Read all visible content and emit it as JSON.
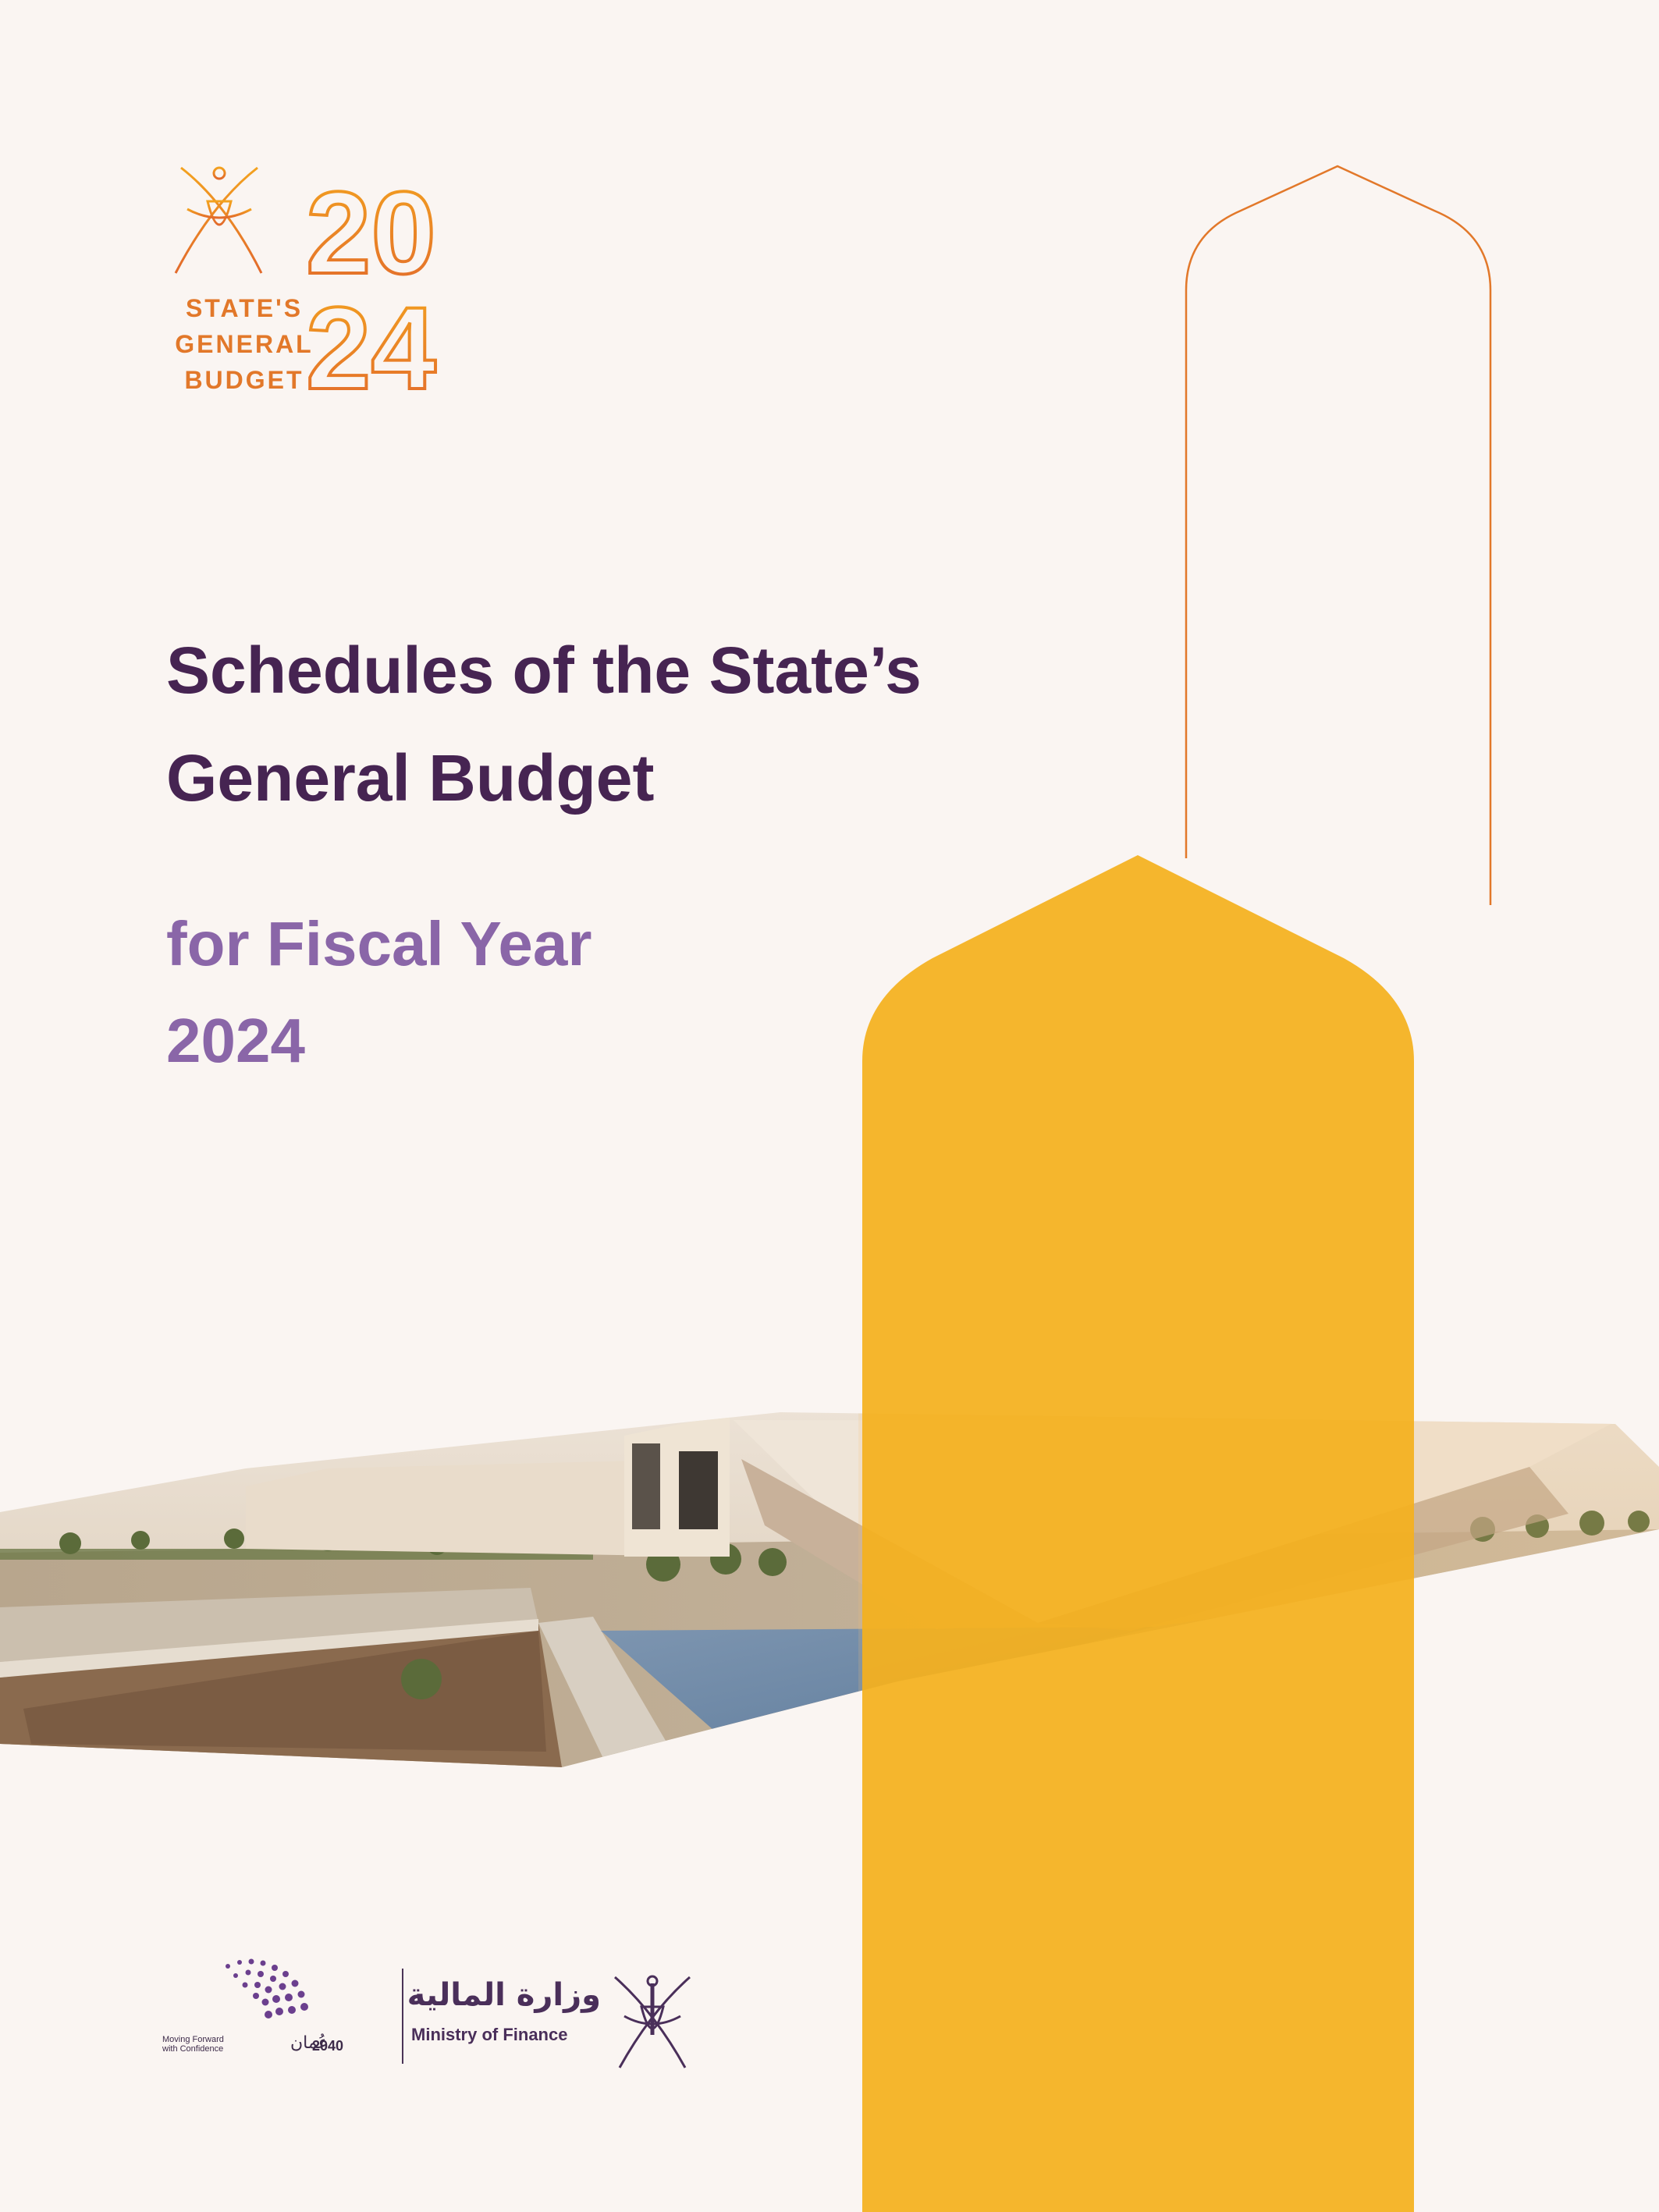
{
  "logo": {
    "year_top": "20",
    "year_bottom": "24",
    "lines": [
      "STATE'S",
      "GENERAL",
      "BUDGET"
    ]
  },
  "title": {
    "line1": "Schedules of the State’s",
    "line2": "General Budget"
  },
  "subtitle": {
    "line1": "for Fiscal Year",
    "line2": "2024"
  },
  "footer": {
    "vision_caption_line1": "Moving Forward",
    "vision_caption_line2": "with Confidence",
    "vision_year": "2040",
    "ministry_arabic": "وزارة المالية",
    "ministry_english": "Ministry of Finance"
  },
  "colors": {
    "background": "#faf5f2",
    "title": "#462452",
    "subtitle": "#8a66a8",
    "accent_orange": "#e2782a",
    "accent_yellow": "#f4b01e"
  },
  "icons": {
    "budget_emblem": "khanjar-crossed-swords-icon",
    "ministry_emblem": "khanjar-crossed-swords-icon",
    "vision_mark": "oman-vision-2040-swirl-icon"
  }
}
